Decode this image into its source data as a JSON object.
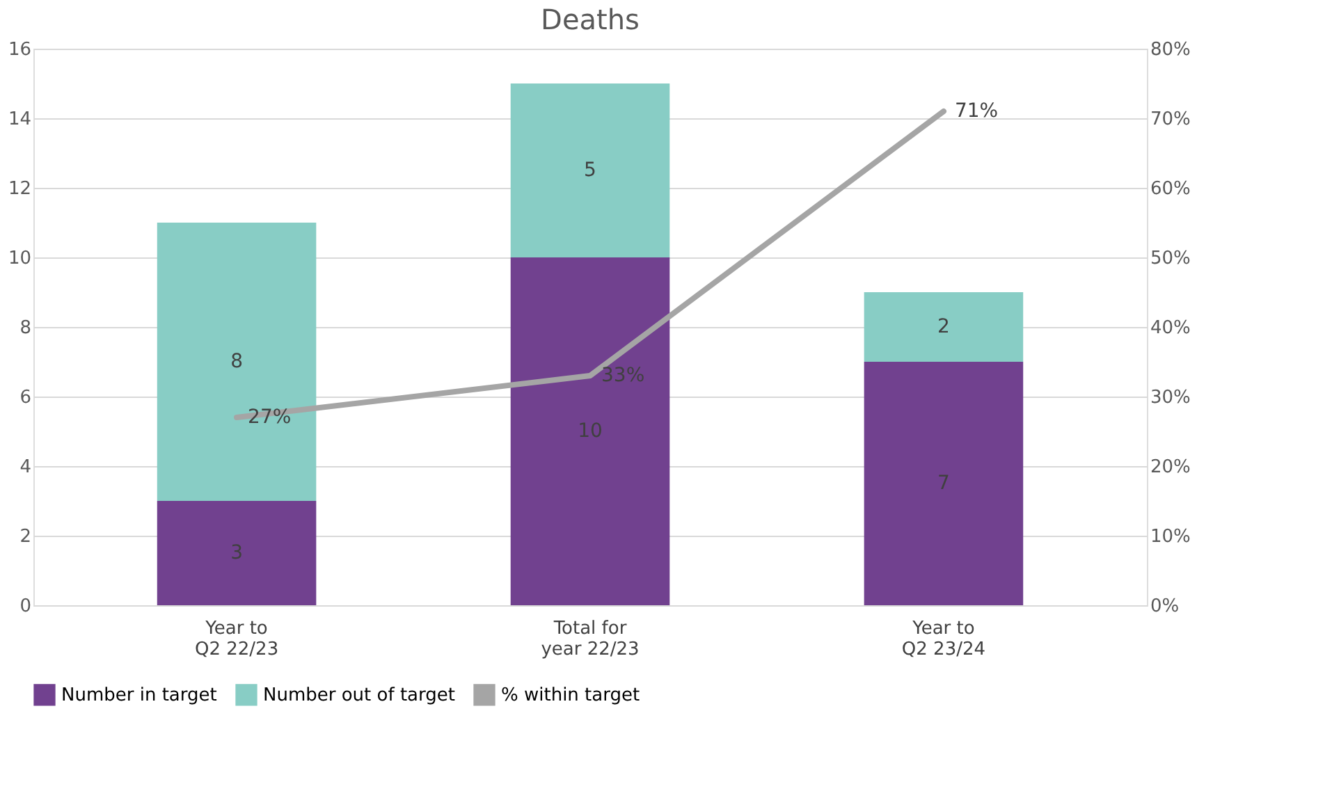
{
  "chart_data": {
    "type": "bar",
    "title": "Deaths",
    "stacked": true,
    "categories": [
      "Year to\nQ2 22/23",
      "Total for\nyear 22/23",
      "Year to\nQ2 23/24"
    ],
    "series": [
      {
        "name": "Number in target",
        "color": "#71418f",
        "values": [
          3,
          10,
          7
        ]
      },
      {
        "name": "Number out of target",
        "color": "#88cdc5",
        "values": [
          8,
          5,
          2
        ]
      },
      {
        "name": "% within target",
        "type": "line",
        "axis": "y2",
        "color": "#a5a5a5",
        "values": [
          27,
          33,
          71
        ],
        "value_labels": [
          "27%",
          "33%",
          "71%"
        ]
      }
    ],
    "data_labels": true,
    "ylim": [
      0,
      16
    ],
    "yticks": [
      0,
      2,
      4,
      6,
      8,
      10,
      12,
      14,
      16
    ],
    "y2lim": [
      0,
      80
    ],
    "y2ticks": [
      {
        "value": 0,
        "label": "0%"
      },
      {
        "value": 10,
        "label": "10%"
      },
      {
        "value": 20,
        "label": "20%"
      },
      {
        "value": 30,
        "label": "30%"
      },
      {
        "value": 40,
        "label": "40%"
      },
      {
        "value": 50,
        "label": "50%"
      },
      {
        "value": 60,
        "label": "60%"
      },
      {
        "value": 70,
        "label": "70%"
      },
      {
        "value": 80,
        "label": "80%"
      }
    ],
    "grid": "y",
    "legend": "bottom"
  }
}
